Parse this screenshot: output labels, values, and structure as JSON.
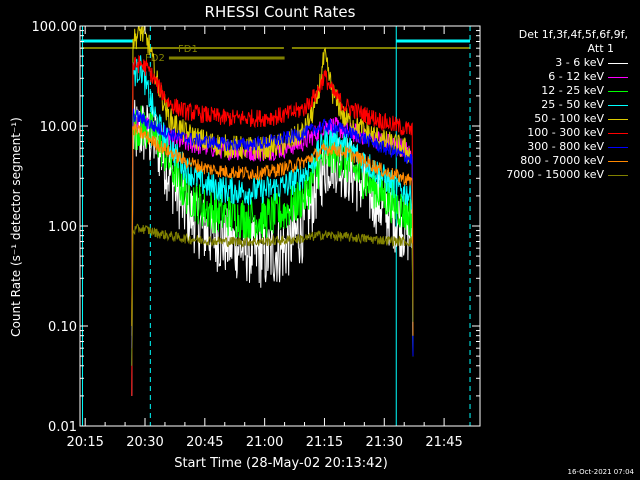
{
  "chart_data": {
    "type": "line",
    "title": "RHESSI Count Rates",
    "xlabel": "Start Time (28-May-02 20:13:42)",
    "ylabel": "Count Rate (s⁻¹ detector segment⁻¹)",
    "y_scale": "log",
    "ylim": [
      0.01,
      100
    ],
    "xlim": [
      "20:13:42",
      "21:54:00"
    ],
    "x_ticks": [
      "20:15",
      "20:30",
      "20:45",
      "21:00",
      "21:15",
      "21:30",
      "21:45"
    ],
    "y_ticks": [
      "0.01",
      "0.10",
      "1.00",
      "10.00",
      "100.00"
    ],
    "grid": false,
    "legend_placement": "right",
    "legend_title": [
      "Det 1f,3f,4f,5f,6f,9f,",
      "Att 1"
    ],
    "x": [
      "20:27",
      "20:29",
      "20:31",
      "20:33",
      "20:36",
      "20:40",
      "20:45",
      "20:50",
      "20:55",
      "21:00",
      "21:05",
      "21:10",
      "21:13",
      "21:15",
      "21:17",
      "21:20",
      "21:25",
      "21:30",
      "21:35",
      "21:37"
    ],
    "series": [
      {
        "name": "3 - 6 keV",
        "color": "#ffffff",
        "values": [
          8,
          9,
          8,
          7,
          3.5,
          1.5,
          0.9,
          0.7,
          0.6,
          0.5,
          0.6,
          1,
          2.5,
          4,
          5,
          4,
          2.5,
          1.5,
          1,
          0.8
        ]
      },
      {
        "name": "6 - 12 keV",
        "color": "#ff00ff",
        "values": [
          10,
          11,
          10,
          9,
          7.5,
          6.8,
          6.2,
          5.8,
          5.6,
          5.5,
          6,
          7,
          8.5,
          10,
          10,
          9,
          8,
          7,
          6,
          5
        ]
      },
      {
        "name": "12 - 25 keV",
        "color": "#00ff00",
        "values": [
          9,
          10,
          9,
          7.5,
          4.5,
          2.2,
          1.5,
          1.3,
          1.2,
          1.2,
          1.4,
          2,
          3.5,
          5,
          5.5,
          4.5,
          3,
          2,
          1.4,
          1.2
        ]
      },
      {
        "name": "25 - 50 keV",
        "color": "#00ffff",
        "values": [
          33,
          38,
          20,
          11,
          6.5,
          3.8,
          2.6,
          2.3,
          2.2,
          2.3,
          2.5,
          3.3,
          5,
          7,
          7.5,
          6.5,
          4.5,
          3,
          2.2,
          2
        ]
      },
      {
        "name": "50 - 100 keV",
        "color": "#ddcc00",
        "values": [
          70,
          90,
          65,
          28,
          12,
          8.5,
          7,
          6.3,
          6,
          6,
          6.6,
          8.8,
          17,
          50,
          22,
          12,
          9,
          7,
          6,
          5
        ]
      },
      {
        "name": "100 - 300 keV",
        "color": "#ff0000",
        "values": [
          40,
          42,
          36,
          26,
          17,
          14,
          13,
          12,
          12,
          12,
          12.8,
          15,
          21,
          32,
          22,
          16,
          13,
          11,
          9.5,
          9
        ]
      },
      {
        "name": "300 - 800 keV",
        "color": "#0000ff",
        "values": [
          13,
          12,
          10.5,
          9.6,
          8.5,
          7.5,
          7,
          6.6,
          6.5,
          6.8,
          7.5,
          8.5,
          9.5,
          10,
          10,
          9,
          7.5,
          6,
          5,
          4.6
        ]
      },
      {
        "name": "800 - 7000 keV",
        "color": "#ff8800",
        "values": [
          9.5,
          8.5,
          7.5,
          6.6,
          5.5,
          4.5,
          3.8,
          3.5,
          3.4,
          3.4,
          3.8,
          4.4,
          5.2,
          5.8,
          6,
          5.5,
          4.5,
          3.5,
          3,
          2.8
        ]
      },
      {
        "name": "7000 - 15000 keV",
        "color": "#808000",
        "values": [
          0.9,
          0.95,
          0.9,
          0.85,
          0.8,
          0.75,
          0.72,
          0.7,
          0.7,
          0.7,
          0.72,
          0.75,
          0.8,
          0.82,
          0.8,
          0.78,
          0.75,
          0.72,
          0.7,
          0.7
        ]
      }
    ],
    "annotations": [
      {
        "text": "FD1",
        "color": "#808000"
      },
      {
        "text": "FD2",
        "color": "#808000"
      }
    ],
    "footer_timestamp": "16-Oct-2021 07:04"
  }
}
